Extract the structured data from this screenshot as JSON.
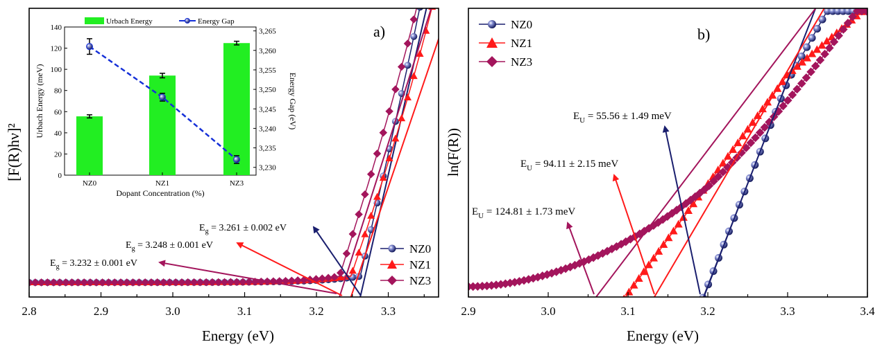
{
  "chart_data": [
    {
      "panel": "a)",
      "type": "line",
      "xlabel": "Energy (eV)",
      "ylabel": "[F(R)hν]²",
      "xlim": [
        2.8,
        3.37
      ],
      "xticks": [
        "2.8",
        "2.9",
        "3.0",
        "3.1",
        "3.2",
        "3.3"
      ],
      "legend_position": "bottom-right",
      "series": [
        {
          "name": "NZ0",
          "marker": "circle",
          "color": "#1a1f6e",
          "band_gap_eV": 3.261
        },
        {
          "name": "NZ1",
          "marker": "triangle",
          "color": "#ff1a1a",
          "band_gap_eV": 3.248
        },
        {
          "name": "NZ3",
          "marker": "diamond",
          "color": "#a3155c",
          "band_gap_eV": 3.232
        }
      ],
      "annotations": [
        {
          "sub": "g",
          "text": " = 3.261 ± 0.002 eV",
          "series": "NZ0"
        },
        {
          "sub": "g",
          "text": " = 3.248 ± 0.001 eV",
          "series": "NZ1"
        },
        {
          "sub": "g",
          "text": " = 3.232 ± 0.001 eV",
          "series": "NZ3"
        }
      ]
    },
    {
      "panel": "inset",
      "type": "bar",
      "categories": [
        "NZ0",
        "NZ1",
        "NZ3"
      ],
      "xlabel": "Dopant Concentration (%)",
      "ylabel": "Urbach Energy (meV)",
      "y2label": "Energy Gap (eV)",
      "ylim": [
        0,
        140
      ],
      "yticks": [
        "0",
        "20",
        "40",
        "60",
        "80",
        "100",
        "120",
        "140"
      ],
      "y2lim": [
        3.228,
        3.266
      ],
      "y2ticks": [
        "3,230",
        "3,235",
        "3,240",
        "3,245",
        "3,250",
        "3,255",
        "3,260",
        "3,265"
      ],
      "series": [
        {
          "name": "Urbach Energy",
          "kind": "bar",
          "color": "#22ee22",
          "values": [
            55.56,
            94.11,
            124.81
          ],
          "errors": [
            1.49,
            2.15,
            1.73
          ]
        },
        {
          "name": "Energy Gap",
          "kind": "line",
          "color": "#1530d8",
          "values": [
            3.261,
            3.248,
            3.232
          ],
          "errors": [
            0.002,
            0.001,
            0.001
          ]
        }
      ]
    },
    {
      "panel": "b)",
      "type": "line",
      "xlabel": "Energy (eV)",
      "ylabel": "ln(F(R))",
      "xlim": [
        2.9,
        3.4
      ],
      "xticks": [
        "2.9",
        "3.0",
        "3.1",
        "3.2",
        "3.3",
        "3.4"
      ],
      "legend_position": "top-left",
      "series": [
        {
          "name": "NZ0",
          "marker": "circle",
          "color": "#1a1f6e"
        },
        {
          "name": "NZ1",
          "marker": "triangle",
          "color": "#ff1a1a"
        },
        {
          "name": "NZ3",
          "marker": "diamond",
          "color": "#a3155c"
        }
      ],
      "annotations": [
        {
          "sub": "U",
          "text": " = 55.56 ± 1.49 meV",
          "series": "NZ0"
        },
        {
          "sub": "U",
          "text": " = 94.11 ± 2.15 meV",
          "series": "NZ1"
        },
        {
          "sub": "U",
          "text": " = 124.81 ± 1.73 meV",
          "series": "NZ3"
        }
      ]
    }
  ]
}
